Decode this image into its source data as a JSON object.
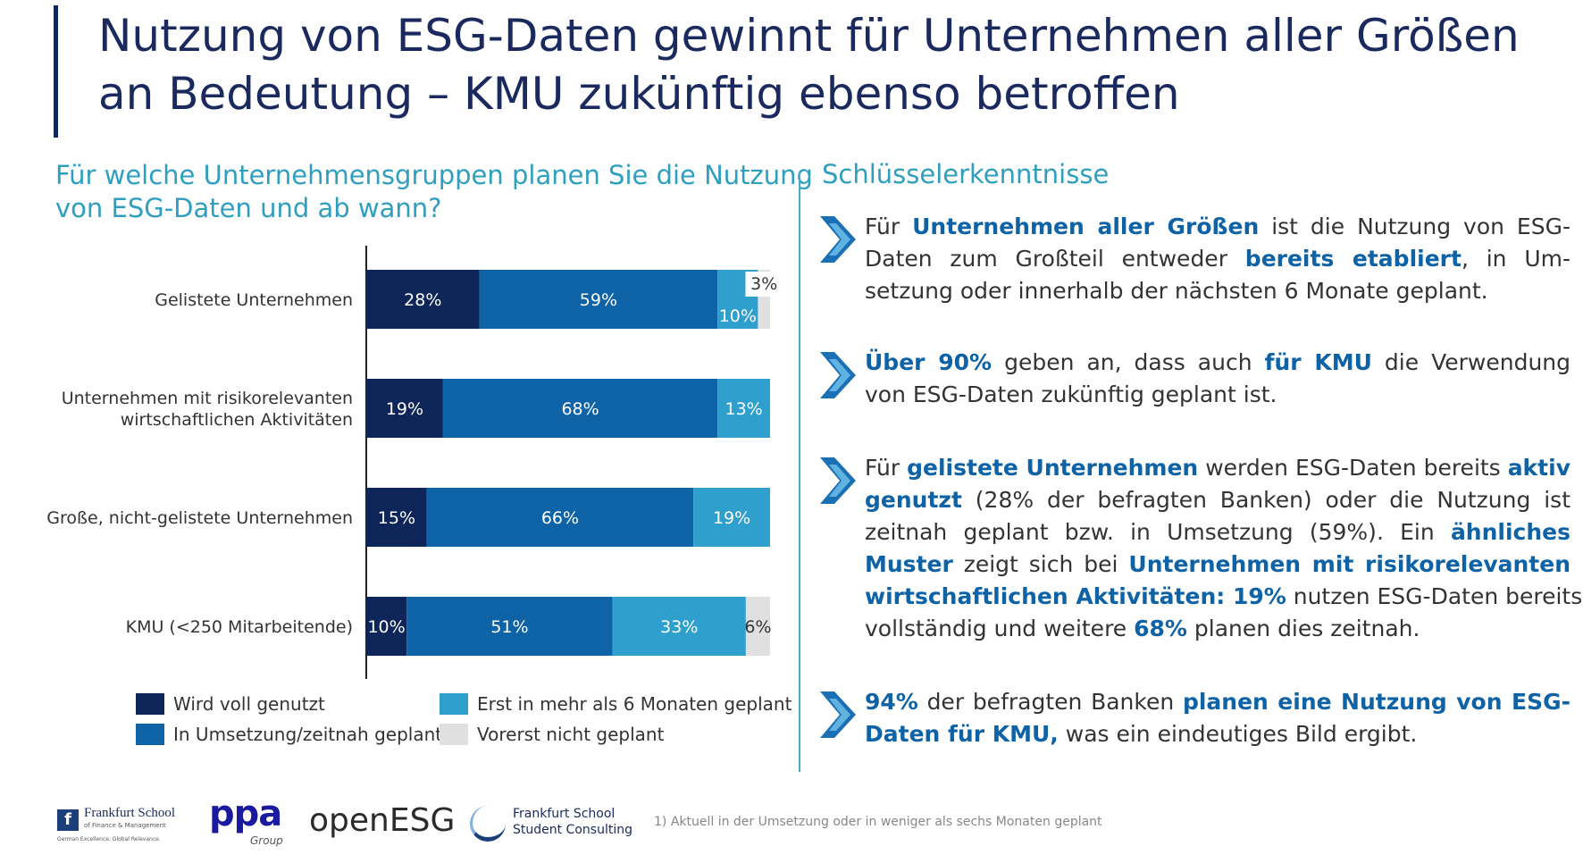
{
  "title": {
    "line1": "Nutzung von ESG-Daten gewinnt für Unternehmen aller Größen",
    "line2": "an Bedeutung – KMU zukünftig ebenso betroffen"
  },
  "chart_question": {
    "line1": "Für welche Unternehmensgruppen planen Sie die Nutzung",
    "line2": "von ESG-Daten und ab wann?"
  },
  "chart_data": {
    "type": "bar",
    "orientation": "horizontal",
    "stacked": true,
    "categories": [
      [
        "Gelistete Unternehmen"
      ],
      [
        "Unternehmen  mit risikorelevanten",
        "wirtschaftlichen Aktivitäten"
      ],
      [
        "Große, nicht-gelistete Unternehmen"
      ],
      [
        "KMU (<250 Mitarbeitende)"
      ]
    ],
    "series": [
      {
        "name": "Wird voll genutzt",
        "color": "#0d2559",
        "values": [
          28,
          19,
          15,
          10
        ]
      },
      {
        "name": "In Umsetzung/zeitnah geplant",
        "color": "#0e62a6",
        "values": [
          59,
          68,
          66,
          51
        ]
      },
      {
        "name": "Erst in mehr als 6 Monaten geplant",
        "color": "#2f9fcd",
        "values": [
          10,
          13,
          19,
          33
        ]
      },
      {
        "name": "Vorerst nicht geplant",
        "color": "#e0e0e0",
        "values": [
          3,
          0,
          0,
          6
        ]
      }
    ],
    "data_labels": [
      [
        "28%",
        "59%",
        "10%",
        "3%"
      ],
      [
        "19%",
        "68%",
        "13%",
        ""
      ],
      [
        "15%",
        "66%",
        "19%",
        ""
      ],
      [
        "10%",
        "51%",
        "33%",
        "6%"
      ]
    ],
    "xlim": [
      0,
      100
    ]
  },
  "legend": {
    "footnote_mark": "1)"
  },
  "insights": {
    "heading": "Schlüsselerkenntnisse",
    "items": [
      {
        "lines": [
          [
            {
              "t": "Für "
            },
            {
              "t": "Unternehmen aller Größen",
              "b": true
            },
            {
              "t": " ist die Nutzung von ESG-"
            }
          ],
          [
            {
              "t": "Daten zum Großteil entweder "
            },
            {
              "t": "bereits etabliert",
              "b": true
            },
            {
              "t": ", in Um-"
            }
          ],
          [
            {
              "t": "setzung oder innerhalb der nächsten 6 Monate geplant."
            }
          ]
        ]
      },
      {
        "lines": [
          [
            {
              "t": "Über 90%",
              "b": true
            },
            {
              "t": " geben an, dass auch "
            },
            {
              "t": "für KMU",
              "b": true
            },
            {
              "t": " die Verwendung"
            }
          ],
          [
            {
              "t": "von ESG-Daten zukünftig geplant ist."
            }
          ]
        ]
      },
      {
        "lines": [
          [
            {
              "t": "Für "
            },
            {
              "t": "gelistete Unternehmen",
              "b": true
            },
            {
              "t": " werden ESG-Daten bereits "
            },
            {
              "t": "aktiv",
              "b": true
            }
          ],
          [
            {
              "t": "genutzt",
              "b": true
            },
            {
              "t": " (28% der befragten Banken) oder die Nutzung ist"
            }
          ],
          [
            {
              "t": "zeitnah geplant bzw. in Umsetzung (59%). Ein "
            },
            {
              "t": "ähnliches",
              "b": true
            }
          ],
          [
            {
              "t": "Muster",
              "b": true
            },
            {
              "t": " zeigt sich bei "
            },
            {
              "t": "Unternehmen mit risikorelevanten",
              "b": true
            }
          ],
          [
            {
              "t": "wirtschaftlichen Aktivitäten: 19%",
              "b": true
            },
            {
              "t": " nutzen ESG-Daten bereits"
            }
          ],
          [
            {
              "t": "vollständig und weitere "
            },
            {
              "t": "68%",
              "b": true
            },
            {
              "t": " planen dies zeitnah."
            }
          ]
        ]
      },
      {
        "lines": [
          [
            {
              "t": "94%",
              "b": true
            },
            {
              "t": " der befragten Banken "
            },
            {
              "t": "planen eine Nutzung von ESG-",
              "b": true
            }
          ],
          [
            {
              "t": "Daten für KMU,",
              "b": true
            },
            {
              "t": " was ein eindeutiges Bild ergibt."
            }
          ]
        ]
      }
    ]
  },
  "footer": {
    "fs_name": "Frankfurt School",
    "fs_sub": "of Finance & Management",
    "fs_tag": "German Excellence. Global Relevance.",
    "ppa": "ppa",
    "ppa_group": "Group",
    "openesg": "openESG",
    "fssc_line1": "Frankfurt School",
    "fssc_line2": "Student Consulting",
    "footnote": "1) Aktuell in der Umsetzung oder in weniger als sechs Monaten geplant"
  }
}
